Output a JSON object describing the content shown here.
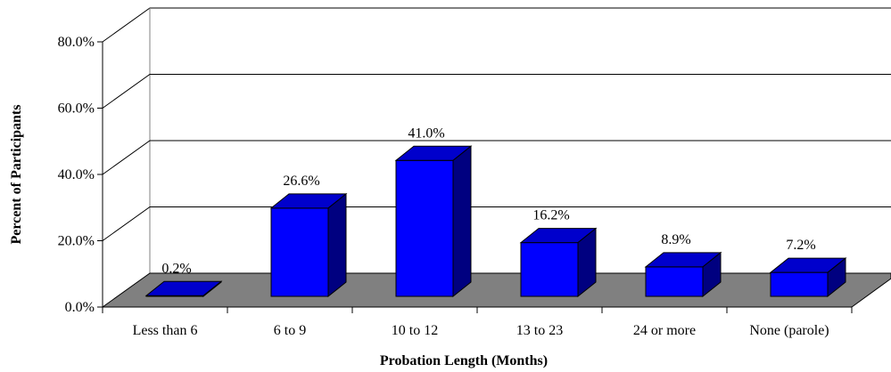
{
  "chart_data": {
    "type": "bar",
    "title": "",
    "xlabel": "Probation Length (Months)",
    "ylabel": "Percent of Participants",
    "categories": [
      "Less than 6",
      "6 to 9",
      "10 to 12",
      "13 to 23",
      "24 or more",
      "None (parole)"
    ],
    "values": [
      0.2,
      26.6,
      41.0,
      16.2,
      8.9,
      7.2
    ],
    "value_labels": [
      "0.2%",
      "26.6%",
      "41.0%",
      "16.2%",
      "8.9%",
      "7.2%"
    ],
    "ylim": [
      0,
      80
    ],
    "yticks": [
      0,
      20,
      40,
      60,
      80
    ],
    "ytick_labels": [
      "0.0%",
      "20.0%",
      "40.0%",
      "60.0%",
      "80.0%"
    ],
    "style": "3d",
    "grid": true,
    "legend": "none",
    "colors": {
      "bar_front": "#0000FF",
      "bar_top": "#0000CC",
      "bar_side": "#000080",
      "floor": "#808080",
      "grid": "#000000"
    }
  }
}
